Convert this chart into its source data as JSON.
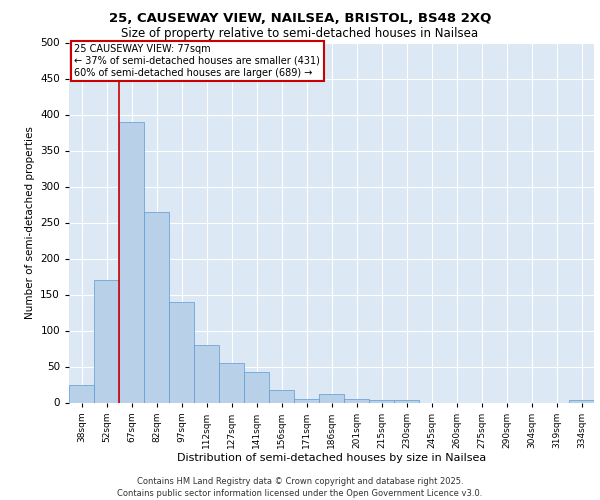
{
  "title1": "25, CAUSEWAY VIEW, NAILSEA, BRISTOL, BS48 2XQ",
  "title2": "Size of property relative to semi-detached houses in Nailsea",
  "xlabel": "Distribution of semi-detached houses by size in Nailsea",
  "ylabel": "Number of semi-detached properties",
  "categories": [
    "38sqm",
    "52sqm",
    "67sqm",
    "82sqm",
    "97sqm",
    "112sqm",
    "127sqm",
    "141sqm",
    "156sqm",
    "171sqm",
    "186sqm",
    "201sqm",
    "215sqm",
    "230sqm",
    "245sqm",
    "260sqm",
    "275sqm",
    "290sqm",
    "304sqm",
    "319sqm",
    "334sqm"
  ],
  "values": [
    25,
    170,
    390,
    265,
    140,
    80,
    55,
    42,
    18,
    5,
    12,
    5,
    4,
    3,
    0,
    0,
    0,
    0,
    0,
    0,
    4
  ],
  "bar_color": "#b8d0e8",
  "bar_edge_color": "#5b9bd5",
  "background_color": "#dce9f5",
  "grid_color": "#ffffff",
  "vline_color": "#cc0000",
  "vline_x_index": 2,
  "annotation_text": "25 CAUSEWAY VIEW: 77sqm\n← 37% of semi-detached houses are smaller (431)\n60% of semi-detached houses are larger (689) →",
  "annotation_box_color": "#ffffff",
  "annotation_box_edge": "#cc0000",
  "footer": "Contains HM Land Registry data © Crown copyright and database right 2025.\nContains public sector information licensed under the Open Government Licence v3.0.",
  "ylim": [
    0,
    500
  ],
  "yticks": [
    0,
    50,
    100,
    150,
    200,
    250,
    300,
    350,
    400,
    450,
    500
  ],
  "fig_bg": "#ffffff"
}
